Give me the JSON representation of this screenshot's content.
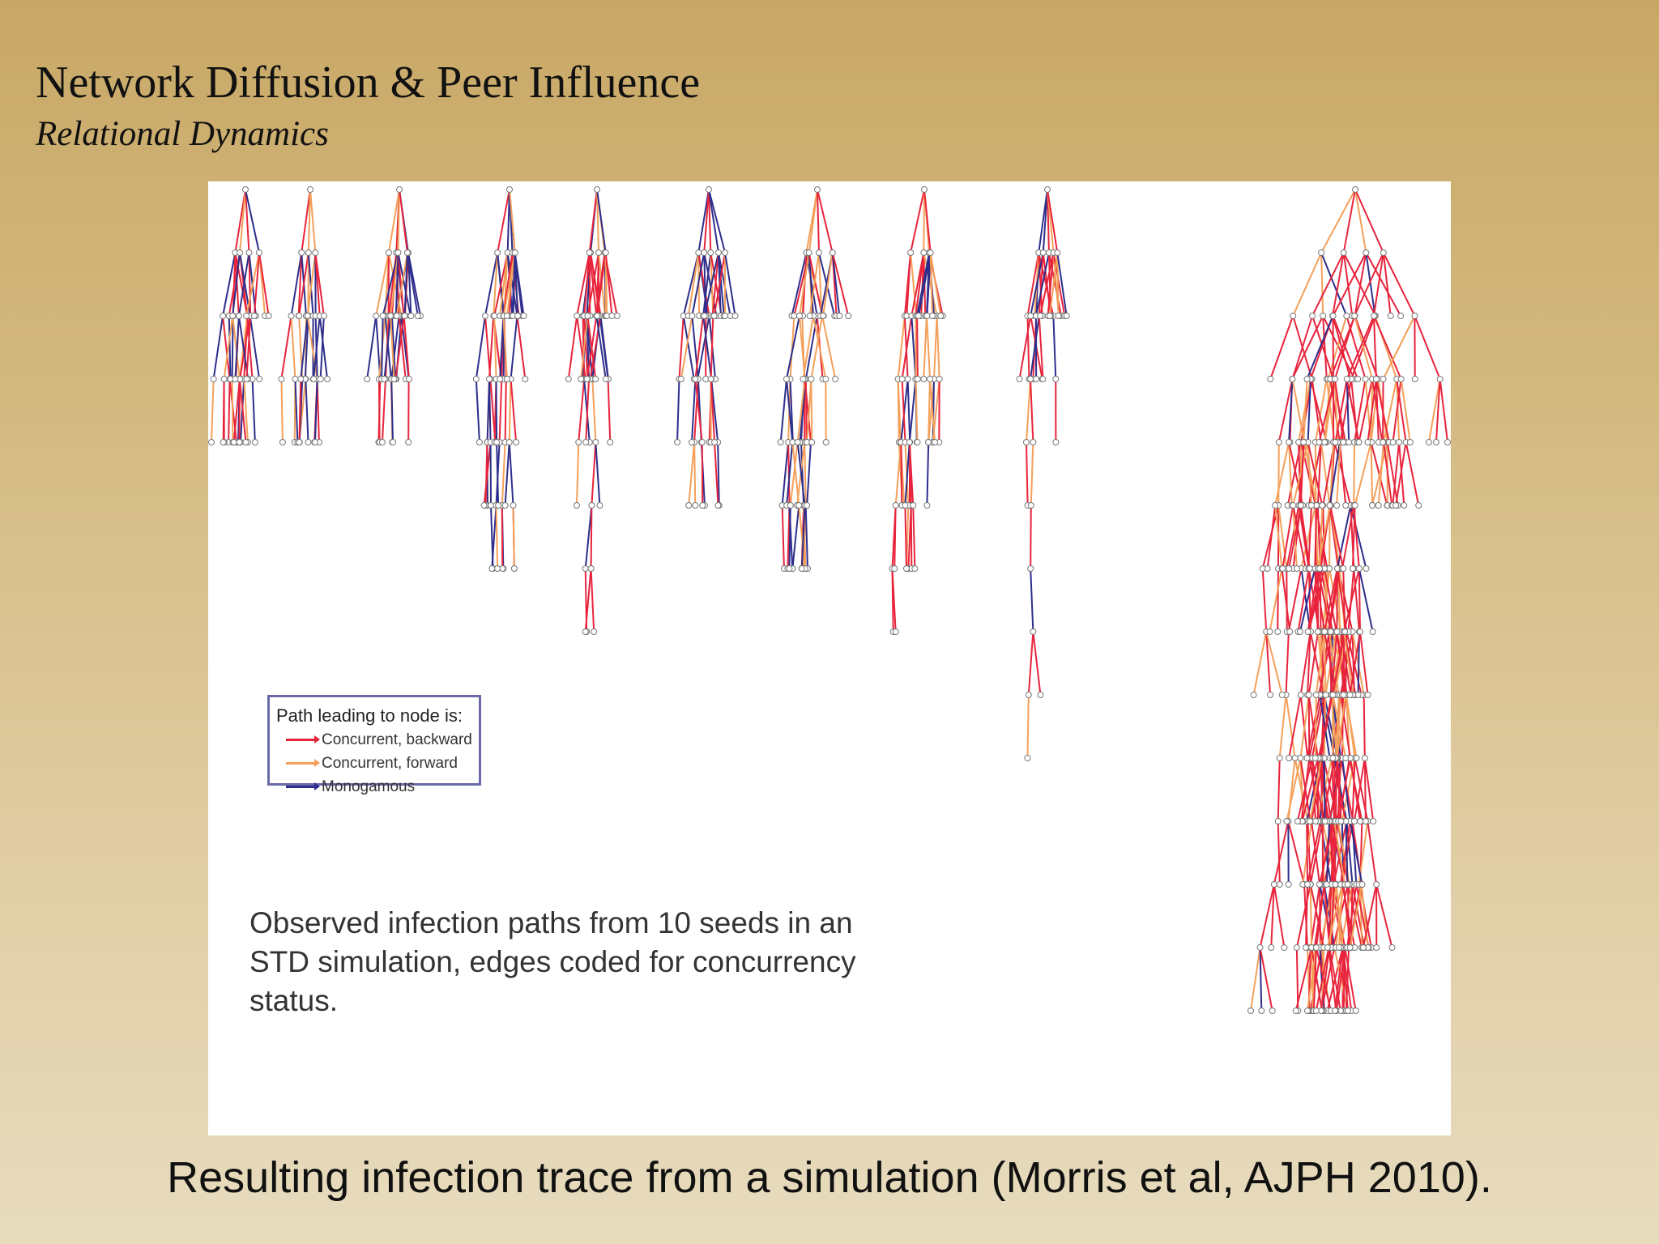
{
  "slide": {
    "title": "Network Diffusion & Peer Influence",
    "subtitle": "Relational Dynamics"
  },
  "figure": {
    "legend": {
      "title": "Path leading to node is:",
      "items": [
        {
          "label": "Concurrent, backward",
          "color": "#e8243c"
        },
        {
          "label": "Concurrent, forward",
          "color": "#f4a05a"
        },
        {
          "label": "Monogamous",
          "color": "#2e2e8c"
        }
      ]
    },
    "caption": "Observed infection paths from 10 seeds in an STD simulation, edges coded for concurrency status.",
    "seed_count": 10
  },
  "bottom_caption": "Resulting infection trace from a simulation (Morris et al, AJPH 2010)."
}
